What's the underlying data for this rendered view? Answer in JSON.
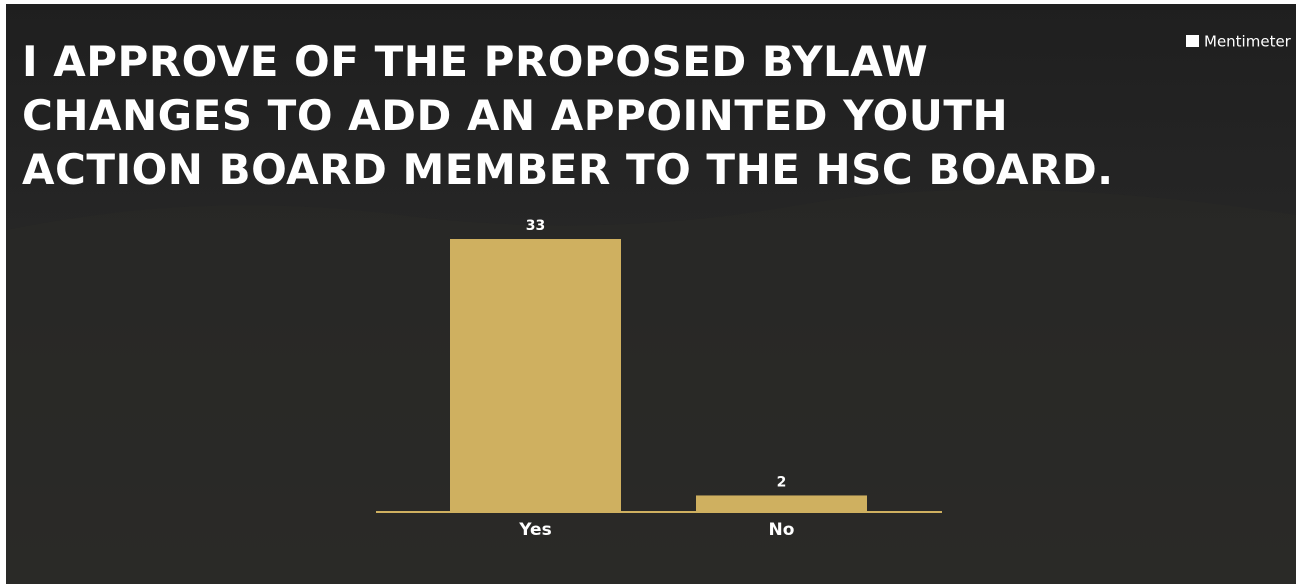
{
  "brand": "Mentimeter",
  "chart_data": {
    "type": "bar",
    "title": [
      "I APPROVE OF THE PROPOSED BYLAW",
      "CHANGES TO ADD AN APPOINTED YOUTH",
      "ACTION BOARD MEMBER TO THE HSC BOARD."
    ],
    "categories": [
      "Yes",
      "No"
    ],
    "values": [
      33,
      2
    ],
    "color": "#cfb060"
  }
}
